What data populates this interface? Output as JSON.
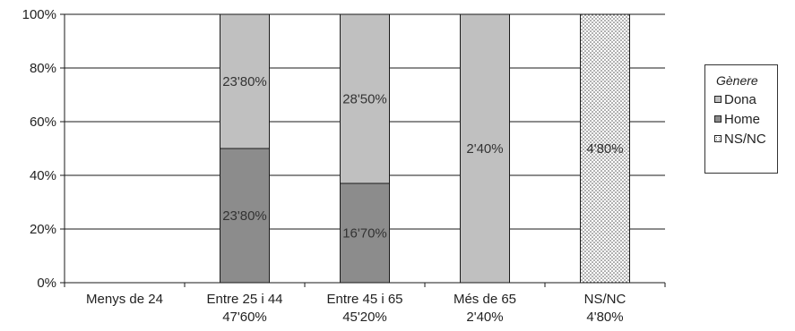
{
  "chart_data": {
    "type": "bar",
    "stacked": true,
    "ylim": [
      0,
      100
    ],
    "yticks": [
      "0%",
      "20%",
      "40%",
      "60%",
      "80%",
      "100%"
    ],
    "grid": true,
    "categories": [
      {
        "name": "Menys de 24",
        "subtitle": ""
      },
      {
        "name": "Entre 25 i 44",
        "subtitle": "47'60%"
      },
      {
        "name": "Entre 45 i 65",
        "subtitle": "45'20%"
      },
      {
        "name": "Més de 65",
        "subtitle": "2'40%"
      },
      {
        "name": "NS/NC",
        "subtitle": "4'80%"
      }
    ],
    "series": [
      {
        "name": "Home",
        "color": "#8c8c8c",
        "pattern": "solid",
        "values": [
          0,
          50,
          37,
          0,
          0
        ],
        "labels": [
          "",
          "23'80%",
          "16'70%",
          "",
          ""
        ]
      },
      {
        "name": "Dona",
        "color": "#c0c0c0",
        "pattern": "solid",
        "values": [
          0,
          50,
          63,
          100,
          0
        ],
        "labels": [
          "",
          "23'80%",
          "28'50%",
          "2'40%",
          ""
        ]
      },
      {
        "name": "NS/NC",
        "color": "#ffffff",
        "pattern": "dots",
        "values": [
          0,
          0,
          0,
          0,
          100
        ],
        "labels": [
          "",
          "",
          "",
          "",
          "4'80%"
        ]
      }
    ],
    "legend": {
      "title": "Gènere",
      "position": "right",
      "items": [
        {
          "name": "Dona",
          "color": "#c0c0c0",
          "pattern": "solid"
        },
        {
          "name": "Home",
          "color": "#8c8c8c",
          "pattern": "solid"
        },
        {
          "name": "NS/NC",
          "color": "#ffffff",
          "pattern": "dots"
        }
      ]
    }
  }
}
